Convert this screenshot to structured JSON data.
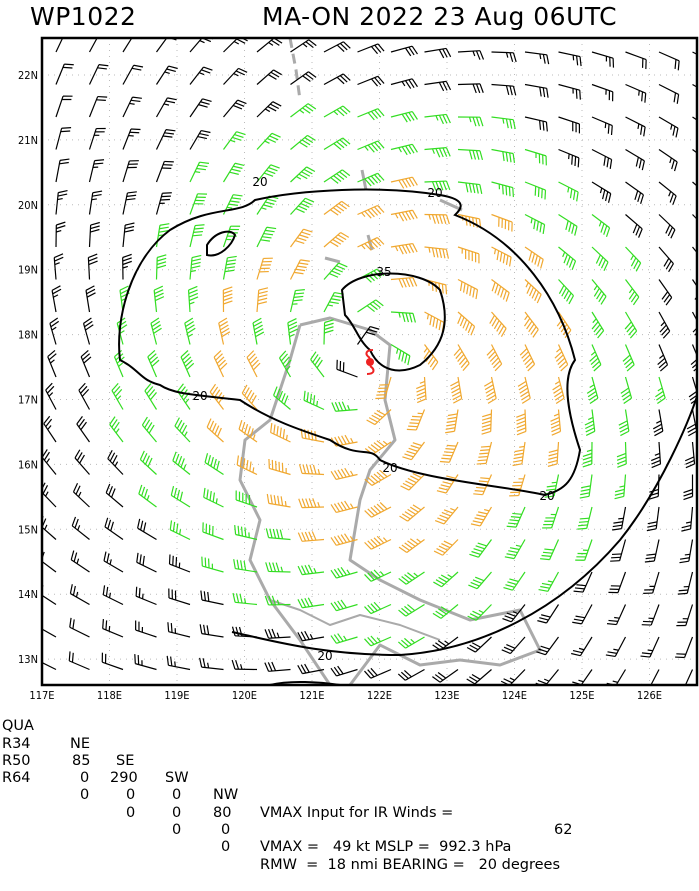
{
  "header": {
    "storm_id": "WP1022",
    "storm_title": "MA-ON 2022 23 Aug 06UTC"
  },
  "map": {
    "lon_labels": [
      "117E",
      "118E",
      "119E",
      "120E",
      "121E",
      "122E",
      "123E",
      "124E",
      "125E",
      "126E"
    ],
    "lat_labels": [
      "22N",
      "21N",
      "20N",
      "19N",
      "18N",
      "17N",
      "16N",
      "15N",
      "14N",
      "13N"
    ],
    "contour_labels": [
      "20",
      "20",
      "20",
      "20",
      "20",
      "35",
      "20"
    ],
    "colors": {
      "below_34kt": "#000000",
      "34_to_49kt": "#33dd22",
      "50_to_63kt": "#f0a830",
      "coast": "#aaaaaa",
      "storm_symbol": "#ee2222"
    }
  },
  "table": {
    "header": [
      "QUA",
      "NE",
      "SE",
      "SW",
      "NW"
    ],
    "rows": [
      [
        "R34",
        "85",
        "290",
        "0",
        "80"
      ],
      [
        "R50",
        "0",
        "0",
        "0",
        "0"
      ],
      [
        "R64",
        "0",
        "0",
        "0",
        "0"
      ]
    ],
    "vmax_input_label": "VMAX Input for IR Winds =",
    "vmax_input_value": "62",
    "vmax_line": "VMAX =   49 kt MSLP =  992.3 hPa",
    "rmw_line": "RMW  =  18 nmi BEARING =   20 degrees"
  }
}
